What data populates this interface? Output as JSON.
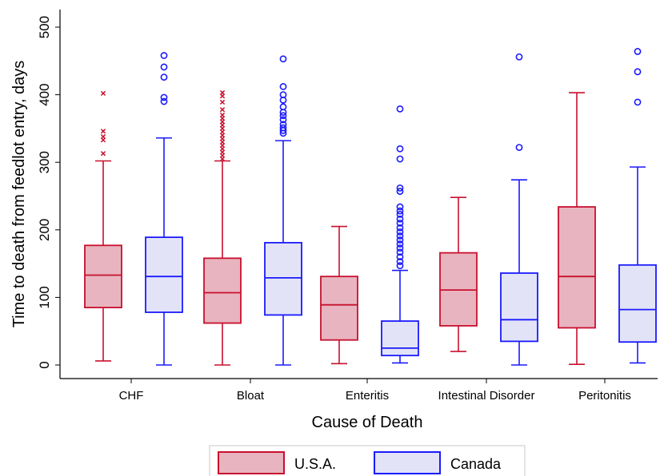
{
  "chart_data": {
    "type": "box",
    "xlabel": "Cause of Death",
    "ylabel": "Time to death from feedlot entry, days",
    "ylim": [
      0,
      500
    ],
    "yticks": [
      "0",
      "100",
      "200",
      "300",
      "400",
      "500"
    ],
    "categories": [
      "CHF",
      "Bloat",
      "Enteritis",
      "Intestinal Disorder",
      "Peritonitis"
    ],
    "grid": false,
    "legend": {
      "position": "bottom"
    },
    "series": [
      {
        "name": "U.S.A.",
        "color": "#c8102e",
        "fill": "#e8b4bf",
        "outlier_marker": "x",
        "boxes": [
          {
            "min": 6,
            "q1": 85,
            "median": 133,
            "q3": 177,
            "max": 302,
            "outliers": [
              313,
              333,
              338,
              346,
              402
            ]
          },
          {
            "min": 0,
            "q1": 62,
            "median": 107,
            "q3": 158,
            "max": 302,
            "outliers": [
              305,
              310,
              315,
              320,
              325,
              330,
              335,
              340,
              345,
              350,
              355,
              360,
              365,
              370,
              378,
              389,
              398,
              403
            ]
          },
          {
            "min": 2,
            "q1": 37,
            "median": 89,
            "q3": 131,
            "max": 205,
            "outliers": []
          },
          {
            "min": 20,
            "q1": 58,
            "median": 111,
            "q3": 166,
            "max": 248,
            "outliers": []
          },
          {
            "min": 1,
            "q1": 55,
            "median": 131,
            "q3": 234,
            "max": 403,
            "outliers": []
          }
        ]
      },
      {
        "name": "Canada",
        "color": "#1a1aff",
        "fill": "#e2e3f7",
        "outlier_marker": "circle",
        "boxes": [
          {
            "min": 0,
            "q1": 78,
            "median": 131,
            "q3": 189,
            "max": 336,
            "outliers": [
              390,
              396,
              426,
              441,
              458
            ]
          },
          {
            "min": 0,
            "q1": 74,
            "median": 129,
            "q3": 181,
            "max": 332,
            "outliers": [
              343,
              347,
              351,
              356,
              363,
              369,
              374,
              382,
              392,
              400,
              412,
              453
            ]
          },
          {
            "min": 3,
            "q1": 14,
            "median": 25,
            "q3": 65,
            "max": 140,
            "outliers": [
              147,
              153,
              160,
              167,
              173,
              179,
              185,
              191,
              197,
              203,
              210,
              216,
              223,
              228,
              234,
              257,
              262,
              305,
              320,
              379
            ]
          },
          {
            "min": 0,
            "q1": 35,
            "median": 67,
            "q3": 136,
            "max": 274,
            "outliers": [
              322,
              456
            ]
          },
          {
            "min": 3,
            "q1": 34,
            "median": 82,
            "q3": 148,
            "max": 293,
            "outliers": [
              389,
              434,
              464
            ]
          }
        ]
      }
    ]
  }
}
